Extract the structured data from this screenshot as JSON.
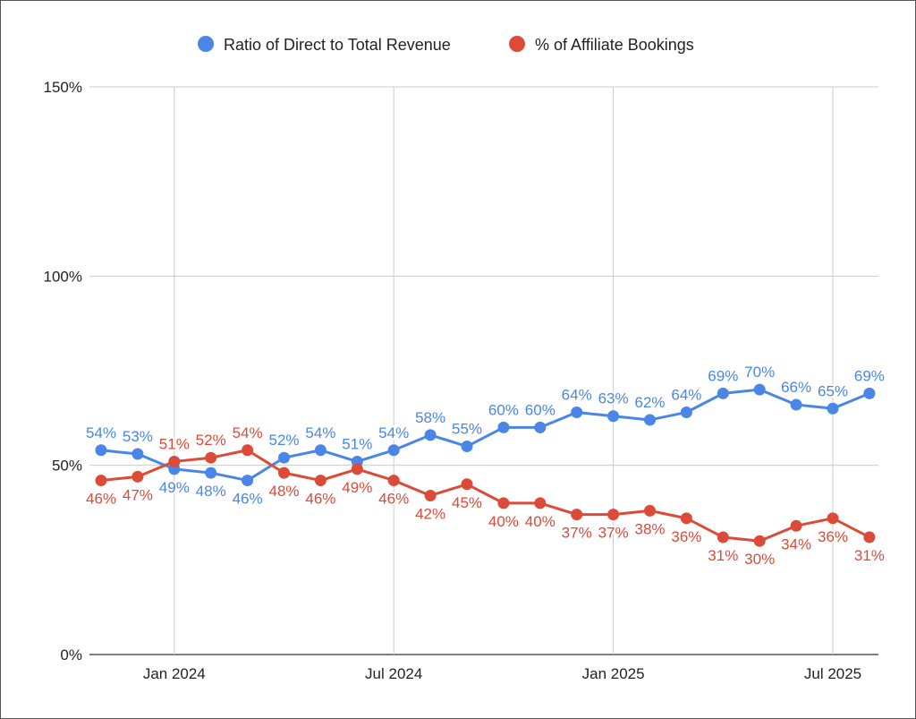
{
  "chart_data": {
    "type": "line",
    "title": "",
    "xlabel": "",
    "ylabel": "",
    "x": [
      "2023-11",
      "2023-12",
      "2024-01",
      "2024-02",
      "2024-03",
      "2024-04",
      "2024-05",
      "2024-06",
      "2024-07",
      "2024-08",
      "2024-09",
      "2024-10",
      "2024-11",
      "2024-12",
      "2025-01",
      "2025-02",
      "2025-03",
      "2025-04",
      "2025-05",
      "2025-06",
      "2025-07",
      "2025-08"
    ],
    "x_ticks": [
      {
        "label": "Jan 2024",
        "index": 2
      },
      {
        "label": "Jul 2024",
        "index": 8
      },
      {
        "label": "Jan 2025",
        "index": 14
      },
      {
        "label": "Jul 2025",
        "index": 20
      }
    ],
    "y_ticks": [
      "0%",
      "50%",
      "100%",
      "150%"
    ],
    "ylim": [
      0,
      150
    ],
    "grid": true,
    "legend_position": "top",
    "series": [
      {
        "name": "Ratio of Direct to Total Revenue",
        "color": "#4a86e8",
        "values": [
          54,
          53,
          49,
          48,
          46,
          52,
          54,
          51,
          54,
          58,
          55,
          60,
          60,
          64,
          63,
          62,
          64,
          69,
          70,
          66,
          65,
          69
        ]
      },
      {
        "name": "% of Affiliate Bookings",
        "color": "#dc4a38",
        "values": [
          46,
          47,
          51,
          52,
          54,
          48,
          46,
          49,
          46,
          42,
          45,
          40,
          40,
          37,
          37,
          38,
          36,
          31,
          30,
          34,
          36,
          31
        ]
      }
    ]
  }
}
